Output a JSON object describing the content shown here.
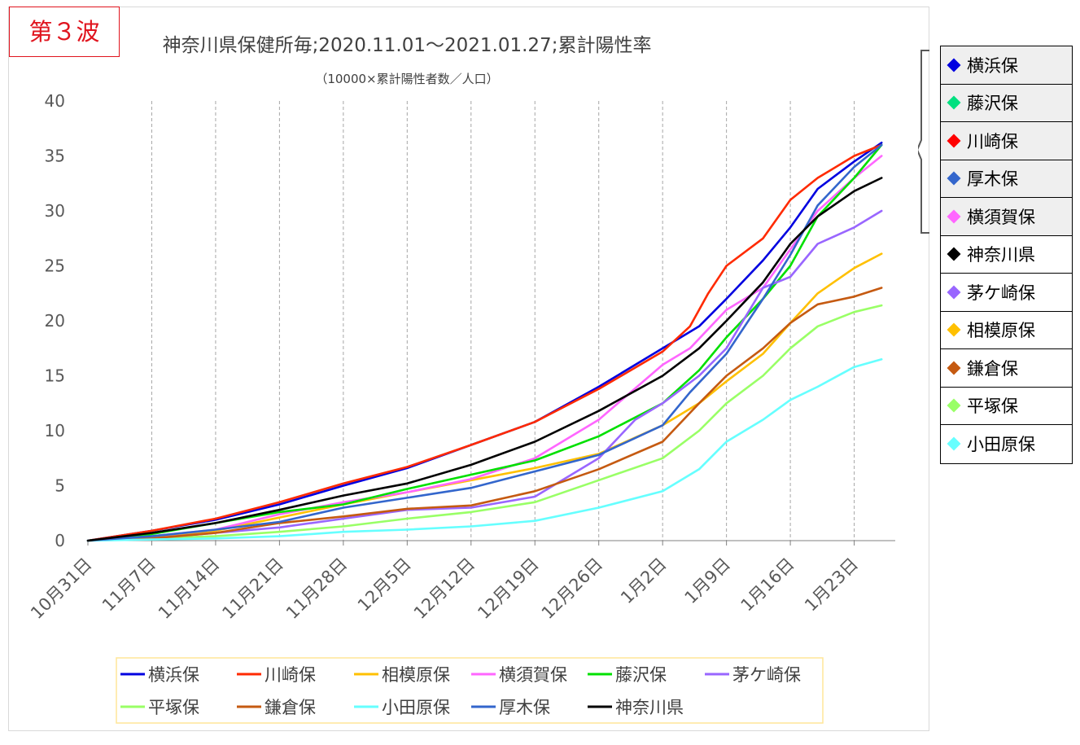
{
  "wave_label": "第３波",
  "chart_data": {
    "type": "line",
    "title": "神奈川県保健所毎;2020.11.01〜2021.01.27;累計陽性率",
    "subtitle": "（10000×累計陽性者数／人口）",
    "xlabel": "",
    "ylabel": "",
    "ylim": [
      0,
      40
    ],
    "yticks": [
      "0",
      "5",
      "10",
      "15",
      "20",
      "25",
      "30",
      "35",
      "40"
    ],
    "x_tick_labels": [
      "10月31日",
      "11月7日",
      "11月14日",
      "11月21日",
      "11月28日",
      "12月5日",
      "12月12日",
      "12月19日",
      "12月26日",
      "1月2日",
      "1月9日",
      "1月16日",
      "1月23日"
    ],
    "x_tick_days": [
      0,
      7,
      14,
      21,
      28,
      35,
      42,
      49,
      56,
      63,
      70,
      77,
      84
    ],
    "grid": "vertical-dashed",
    "legend_position": "bottom",
    "series": [
      {
        "name": "横浜保",
        "color": "#0000e0",
        "x": [
          0,
          7,
          14,
          21,
          28,
          35,
          42,
          49,
          56,
          63,
          67,
          70,
          74,
          77,
          80,
          84,
          87
        ],
        "values": [
          0,
          0.9,
          1.9,
          3.3,
          5.0,
          6.6,
          8.7,
          10.8,
          14.0,
          17.5,
          19.5,
          22.0,
          25.5,
          28.5,
          32.0,
          34.5,
          36.2
        ]
      },
      {
        "name": "川崎保",
        "color": "#ff2a00",
        "x": [
          0,
          7,
          14,
          21,
          28,
          35,
          42,
          49,
          56,
          63,
          66,
          68,
          70,
          74,
          77,
          80,
          84,
          87
        ],
        "values": [
          0,
          0.9,
          2.0,
          3.5,
          5.2,
          6.7,
          8.7,
          10.8,
          13.8,
          17.2,
          19.5,
          22.5,
          25.0,
          27.5,
          31.0,
          33.0,
          35.0,
          36.0
        ]
      },
      {
        "name": "相模原保",
        "color": "#ffc000",
        "x": [
          0,
          7,
          14,
          21,
          28,
          35,
          42,
          49,
          56,
          63,
          67,
          70,
          74,
          77,
          80,
          84,
          87
        ],
        "values": [
          0,
          0.3,
          0.9,
          2.1,
          3.3,
          4.4,
          5.5,
          6.6,
          7.9,
          10.5,
          12.5,
          14.5,
          17.0,
          19.8,
          22.5,
          24.8,
          26.1
        ]
      },
      {
        "name": "横須賀保",
        "color": "#ff66ff",
        "x": [
          0,
          7,
          14,
          21,
          28,
          35,
          42,
          49,
          56,
          63,
          66,
          70,
          74,
          77,
          80,
          84,
          87
        ],
        "values": [
          0,
          0.4,
          1.0,
          2.4,
          3.5,
          4.4,
          5.6,
          7.5,
          11.0,
          16.0,
          17.5,
          21.0,
          23.0,
          26.5,
          30.0,
          33.0,
          35.0
        ]
      },
      {
        "name": "藤沢保",
        "color": "#00e000",
        "x": [
          0,
          7,
          14,
          21,
          28,
          35,
          42,
          49,
          56,
          63,
          67,
          70,
          74,
          77,
          80,
          84,
          87
        ],
        "values": [
          0,
          0.6,
          1.6,
          2.6,
          3.3,
          4.7,
          6.0,
          7.3,
          9.5,
          12.5,
          15.5,
          18.5,
          22.0,
          25.0,
          29.5,
          33.0,
          36.0
        ]
      },
      {
        "name": "茅ケ崎保",
        "color": "#9966ff",
        "x": [
          0,
          7,
          14,
          21,
          28,
          35,
          42,
          49,
          56,
          60,
          63,
          67,
          70,
          74,
          77,
          80,
          84,
          87
        ],
        "values": [
          0,
          0.2,
          0.7,
          1.2,
          2.0,
          2.8,
          3.0,
          4.0,
          7.5,
          11.0,
          12.5,
          15.0,
          17.5,
          23.0,
          24.0,
          27.0,
          28.5,
          30.0
        ]
      },
      {
        "name": "平塚保",
        "color": "#99ff66",
        "x": [
          0,
          7,
          14,
          21,
          28,
          35,
          42,
          49,
          56,
          63,
          67,
          70,
          74,
          77,
          80,
          84,
          87
        ],
        "values": [
          0,
          0.2,
          0.4,
          0.8,
          1.3,
          2.0,
          2.6,
          3.5,
          5.5,
          7.5,
          10.0,
          12.5,
          15.0,
          17.5,
          19.5,
          20.8,
          21.4
        ]
      },
      {
        "name": "鎌倉保",
        "color": "#c55a11",
        "x": [
          0,
          7,
          14,
          21,
          28,
          35,
          42,
          49,
          56,
          63,
          67,
          70,
          74,
          77,
          80,
          84,
          87
        ],
        "values": [
          0,
          0.2,
          0.7,
          1.6,
          2.2,
          2.9,
          3.2,
          4.5,
          6.5,
          9.0,
          12.5,
          15.0,
          17.5,
          19.8,
          21.5,
          22.2,
          23.0
        ]
      },
      {
        "name": "小田原保",
        "color": "#66ffff",
        "x": [
          0,
          7,
          14,
          21,
          28,
          35,
          42,
          49,
          56,
          63,
          67,
          70,
          74,
          77,
          80,
          84,
          87
        ],
        "values": [
          0,
          0.1,
          0.2,
          0.4,
          0.8,
          1.0,
          1.3,
          1.8,
          3.0,
          4.5,
          6.5,
          9.0,
          11.0,
          12.8,
          14.0,
          15.8,
          16.5
        ]
      },
      {
        "name": "厚木保",
        "color": "#3366cc",
        "x": [
          0,
          7,
          14,
          21,
          28,
          35,
          42,
          49,
          56,
          63,
          66,
          70,
          74,
          77,
          80,
          84,
          87
        ],
        "values": [
          0,
          0.4,
          1.0,
          1.7,
          3.0,
          3.9,
          4.8,
          6.3,
          7.8,
          10.5,
          13.5,
          17.0,
          22.0,
          26.0,
          30.5,
          34.0,
          36.0
        ]
      },
      {
        "name": "神奈川県",
        "color": "#000000",
        "x": [
          0,
          7,
          14,
          21,
          28,
          35,
          42,
          49,
          56,
          63,
          67,
          70,
          74,
          77,
          80,
          84,
          87
        ],
        "values": [
          0,
          0.7,
          1.6,
          2.8,
          4.1,
          5.2,
          6.9,
          9.0,
          11.8,
          15.0,
          17.5,
          20.0,
          23.5,
          27.0,
          29.5,
          31.8,
          33.0
        ]
      }
    ]
  },
  "side_legend": {
    "highlight_count": 5,
    "items": [
      {
        "label": "横浜保",
        "color": "#0000e0"
      },
      {
        "label": "藤沢保",
        "color": "#00e080"
      },
      {
        "label": "川崎保",
        "color": "#ff0000"
      },
      {
        "label": "厚木保",
        "color": "#3366cc"
      },
      {
        "label": "横須賀保",
        "color": "#ff66ff"
      },
      {
        "label": "神奈川県",
        "color": "#000000"
      },
      {
        "label": "茅ケ崎保",
        "color": "#9966ff"
      },
      {
        "label": "相模原保",
        "color": "#ffc000"
      },
      {
        "label": "鎌倉保",
        "color": "#c55a11"
      },
      {
        "label": "平塚保",
        "color": "#99ff66"
      },
      {
        "label": "小田原保",
        "color": "#66ffff"
      }
    ]
  }
}
